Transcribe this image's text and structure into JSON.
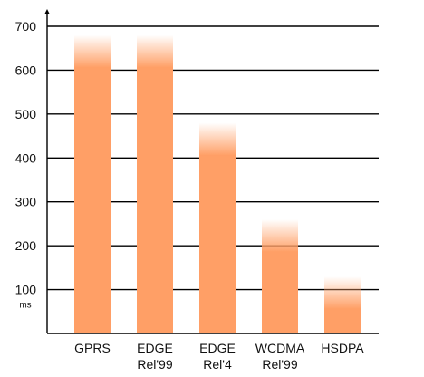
{
  "chart_data": {
    "type": "bar",
    "title": "",
    "xlabel": "",
    "ylabel": "",
    "y_unit": "ms",
    "ylim": [
      0,
      700
    ],
    "yticks": [
      100,
      200,
      300,
      400,
      500,
      600,
      700
    ],
    "grid": true,
    "legend": "none",
    "bar_color": "#ff9f66",
    "categories": [
      [
        "GPRS"
      ],
      [
        "EDGE",
        "Rel'99"
      ],
      [
        "EDGE",
        "Rel'4"
      ],
      [
        "WCDMA",
        "Rel'99"
      ],
      [
        "HSDPA"
      ]
    ],
    "values": [
      680,
      680,
      480,
      260,
      130
    ]
  }
}
